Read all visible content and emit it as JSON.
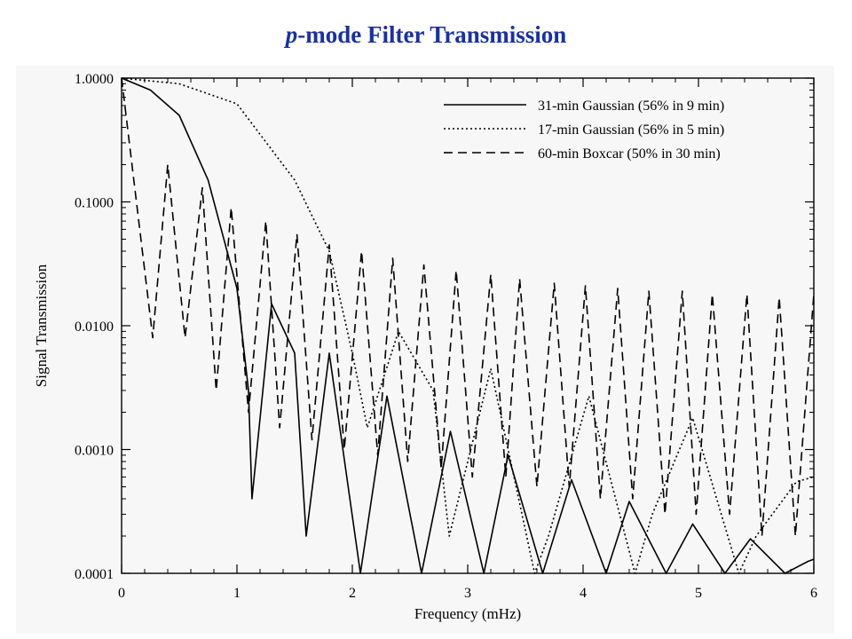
{
  "slide": {
    "title_italic": "p",
    "title_rest": "-mode Filter Transmission"
  },
  "colors": {
    "title": "#1b2fa6",
    "panel_background": "#f7f7f7",
    "line": "#000000"
  },
  "chart_data": {
    "type": "line",
    "title": "p-mode Filter Transmission",
    "xlabel": "Frequency (mHz)",
    "ylabel": "Signal Transmission",
    "xlim": [
      0,
      6
    ],
    "ylim": [
      0.0001,
      1.0
    ],
    "yscale": "log",
    "grid": false,
    "legend_position": "top-right",
    "x_ticks": [
      "0",
      "1",
      "2",
      "3",
      "4",
      "5",
      "6"
    ],
    "y_ticks": [
      "0.0001",
      "0.0010",
      "0.0100",
      "0.1000",
      "1.0000"
    ],
    "series": [
      {
        "name": "31-min Gaussian (56% in 9 min)",
        "style": "solid",
        "x": [
          0,
          0.25,
          0.5,
          0.75,
          1.0,
          1.1,
          1.13,
          1.3,
          1.5,
          1.6,
          1.8,
          2.07,
          2.3,
          2.6,
          2.85,
          3.14,
          3.35,
          3.65,
          3.9,
          4.2,
          4.4,
          4.72,
          4.95,
          5.23,
          5.45,
          5.75,
          5.95,
          6.0
        ],
        "y": [
          1.0,
          0.8,
          0.5,
          0.15,
          0.02,
          0.003,
          0.0004,
          0.015,
          0.006,
          0.0002,
          0.006,
          0.0001,
          0.0027,
          0.0001,
          0.0014,
          0.0001,
          0.0009,
          0.0001,
          0.00057,
          0.0001,
          0.00038,
          0.0001,
          0.00025,
          0.0001,
          0.00019,
          0.0001,
          0.000125,
          0.00013
        ]
      },
      {
        "name": "17-min Gaussian (56% in 5 min)",
        "style": "dotted",
        "x": [
          0,
          0.5,
          1.0,
          1.5,
          1.8,
          2.0,
          2.13,
          2.4,
          2.7,
          2.84,
          3.2,
          3.58,
          3.7,
          4.05,
          4.45,
          4.6,
          4.95,
          5.35,
          5.5,
          5.85,
          6.0
        ],
        "y": [
          1.0,
          0.9,
          0.62,
          0.15,
          0.04,
          0.006,
          0.0015,
          0.009,
          0.003,
          0.0002,
          0.0045,
          0.0001,
          0.0002,
          0.0027,
          0.0001,
          0.0003,
          0.0018,
          0.0001,
          0.0002,
          0.00055,
          0.0006
        ]
      },
      {
        "name": "60-min Boxcar (50% in 30 min)",
        "style": "dashed",
        "x": [
          0,
          0.27,
          0.4,
          0.55,
          0.7,
          0.82,
          0.95,
          1.1,
          1.25,
          1.37,
          1.52,
          1.65,
          1.8,
          1.93,
          2.08,
          2.22,
          2.35,
          2.48,
          2.62,
          2.77,
          2.9,
          3.04,
          3.2,
          3.33,
          3.45,
          3.6,
          3.75,
          3.88,
          4.02,
          4.15,
          4.3,
          4.43,
          4.57,
          4.71,
          4.86,
          4.98,
          5.12,
          5.27,
          5.42,
          5.55,
          5.7,
          5.84,
          6.0
        ],
        "y": [
          1.0,
          0.008,
          0.2,
          0.008,
          0.13,
          0.003,
          0.09,
          0.002,
          0.07,
          0.0015,
          0.055,
          0.0012,
          0.045,
          0.001,
          0.04,
          0.0009,
          0.035,
          0.0008,
          0.031,
          0.0007,
          0.028,
          0.0006,
          0.026,
          0.0006,
          0.024,
          0.0005,
          0.022,
          0.0005,
          0.021,
          0.0004,
          0.02,
          0.0004,
          0.019,
          0.0003,
          0.019,
          0.0003,
          0.018,
          0.0003,
          0.018,
          0.0002,
          0.017,
          0.0002,
          0.018
        ]
      }
    ]
  }
}
